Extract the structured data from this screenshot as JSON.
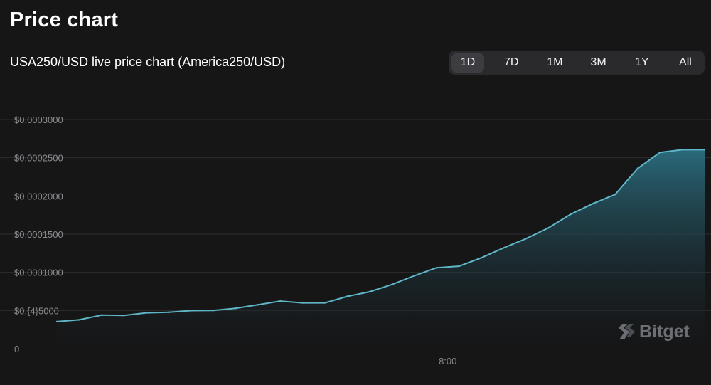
{
  "header": {
    "title": "Price chart",
    "subtitle": "USA250/USD live price chart (America250/USD)"
  },
  "range_tabs": [
    {
      "label": "1D",
      "active": true
    },
    {
      "label": "7D",
      "active": false
    },
    {
      "label": "1M",
      "active": false
    },
    {
      "label": "3M",
      "active": false
    },
    {
      "label": "1Y",
      "active": false
    },
    {
      "label": "All",
      "active": false
    }
  ],
  "watermark": {
    "text": "Bitget",
    "icon": "bitget-logo-icon"
  },
  "colors": {
    "background": "#161617",
    "line": "#5fb6c9",
    "fill_top": "#2b6e80",
    "grid": "#2e2e31",
    "tick_text": "#8a8a8e"
  },
  "chart_data": {
    "type": "area",
    "title": "",
    "xlabel": "",
    "ylabel": "",
    "ylim": [
      0,
      0.0003
    ],
    "y_ticks": [
      {
        "value": 0,
        "label": "0"
      },
      {
        "value": 5e-05,
        "label": "$0.{4}5000"
      },
      {
        "value": 0.0001,
        "label": "$0.0001000"
      },
      {
        "value": 0.00015,
        "label": "$0.0001500"
      },
      {
        "value": 0.0002,
        "label": "$0.0002000"
      },
      {
        "value": 0.00025,
        "label": "$0.0002500"
      },
      {
        "value": 0.0003,
        "label": "$0.0003000"
      }
    ],
    "x_ticks": [
      {
        "index": 17.5,
        "label": "8:00"
      }
    ],
    "grid": true,
    "series": [
      {
        "values": [
          3.55e-05,
          3.78e-05,
          4.4e-05,
          4.35e-05,
          4.7e-05,
          4.78e-05,
          4.98e-05,
          5e-05,
          5.28e-05,
          5.75e-05,
          6.23e-05,
          6e-05,
          6e-05,
          6.85e-05,
          7.45e-05,
          8.4e-05,
          9.55e-05,
          0.000106,
          0.000108,
          0.000119,
          0.000132,
          0.000144,
          0.000158,
          0.000176,
          0.00019,
          0.000202,
          0.000236,
          0.000257,
          0.0002605,
          0.0002605
        ]
      }
    ]
  }
}
